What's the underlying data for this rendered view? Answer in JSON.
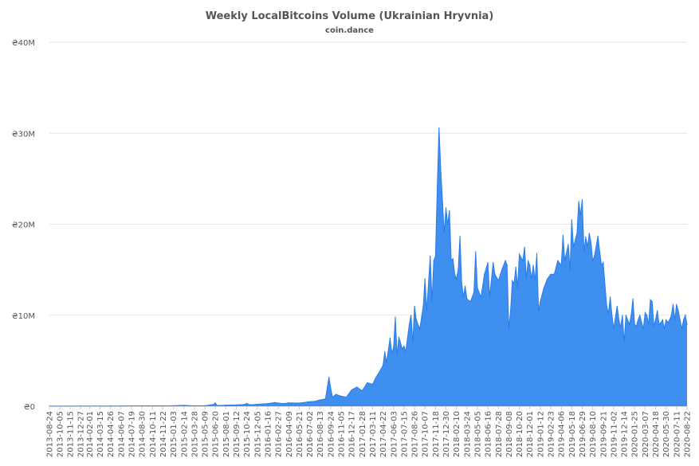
{
  "chart_data": {
    "type": "area",
    "title": "Weekly LocalBitcoins Volume (Ukrainian Hryvnia)",
    "subtitle": "coin.dance",
    "xlabel": "",
    "ylabel": "",
    "ylim": [
      0,
      40000000
    ],
    "y_ticks": [
      {
        "value": 0,
        "label": "₴0"
      },
      {
        "value": 10000000,
        "label": "₴10M"
      },
      {
        "value": 20000000,
        "label": "₴20M"
      },
      {
        "value": 30000000,
        "label": "₴30M"
      },
      {
        "value": 40000000,
        "label": "₴40M"
      }
    ],
    "x_tick_labels": [
      "2013-08-24",
      "2013-10-05",
      "2013-11-15",
      "2013-12-27",
      "2014-02-01",
      "2014-03-15",
      "2014-04-26",
      "2014-06-07",
      "2014-07-19",
      "2014-08-30",
      "2014-10-11",
      "2014-11-22",
      "2015-01-03",
      "2015-02-14",
      "2015-03-28",
      "2015-05-09",
      "2015-06-20",
      "2015-08-01",
      "2015-09-12",
      "2015-10-24",
      "2015-12-05",
      "2016-01-16",
      "2016-02-27",
      "2016-04-09",
      "2016-05-21",
      "2016-07-02",
      "2016-08-13",
      "2016-09-24",
      "2016-11-05",
      "2016-12-17",
      "2017-01-28",
      "2017-03-11",
      "2017-04-22",
      "2017-06-03",
      "2017-07-15",
      "2017-08-26",
      "2017-10-07",
      "2017-11-18",
      "2017-12-30",
      "2018-02-10",
      "2018-03-24",
      "2018-05-05",
      "2018-06-16",
      "2018-07-28",
      "2018-09-08",
      "2018-10-20",
      "2018-12-01",
      "2019-01-12",
      "2019-02-23",
      "2019-04-06",
      "2019-05-18",
      "2019-06-29",
      "2019-08-10",
      "2019-09-21",
      "2019-11-02",
      "2019-12-14",
      "2020-01-25",
      "2020-03-07",
      "2020-04-18",
      "2020-05-30",
      "2020-07-11",
      "2020-08-22"
    ],
    "series": [
      {
        "name": "",
        "color": "#3f8ff0",
        "points": [
          [
            "2013-08-24",
            5000
          ],
          [
            "2013-12-27",
            20000
          ],
          [
            "2014-04-26",
            30000
          ],
          [
            "2014-08-30",
            40000
          ],
          [
            "2014-12-27",
            50000
          ],
          [
            "2015-02-14",
            100000
          ],
          [
            "2015-03-28",
            40000
          ],
          [
            "2015-05-09",
            50000
          ],
          [
            "2015-06-13",
            200000
          ],
          [
            "2015-06-20",
            350000
          ],
          [
            "2015-06-27",
            80000
          ],
          [
            "2015-08-01",
            120000
          ],
          [
            "2015-09-12",
            150000
          ],
          [
            "2015-10-10",
            180000
          ],
          [
            "2015-10-24",
            300000
          ],
          [
            "2015-11-07",
            150000
          ],
          [
            "2015-12-05",
            220000
          ],
          [
            "2016-01-16",
            300000
          ],
          [
            "2016-02-13",
            400000
          ],
          [
            "2016-02-27",
            350000
          ],
          [
            "2016-03-19",
            300000
          ],
          [
            "2016-04-09",
            380000
          ],
          [
            "2016-05-21",
            350000
          ],
          [
            "2016-07-02",
            500000
          ],
          [
            "2016-07-23",
            550000
          ],
          [
            "2016-08-13",
            700000
          ],
          [
            "2016-09-03",
            800000
          ],
          [
            "2016-09-17",
            3200000
          ],
          [
            "2016-09-24",
            2000000
          ],
          [
            "2016-10-01",
            1000000
          ],
          [
            "2016-10-15",
            1300000
          ],
          [
            "2016-11-05",
            1100000
          ],
          [
            "2016-11-26",
            1000000
          ],
          [
            "2016-12-17",
            1800000
          ],
          [
            "2017-01-07",
            2100000
          ],
          [
            "2017-01-28",
            1700000
          ],
          [
            "2017-02-18",
            2600000
          ],
          [
            "2017-03-11",
            2400000
          ],
          [
            "2017-03-25",
            3200000
          ],
          [
            "2017-04-08",
            3800000
          ],
          [
            "2017-04-22",
            4500000
          ],
          [
            "2017-04-29",
            6000000
          ],
          [
            "2017-05-06",
            4800000
          ],
          [
            "2017-05-20",
            7500000
          ],
          [
            "2017-05-27",
            5800000
          ],
          [
            "2017-06-03",
            6500000
          ],
          [
            "2017-06-10",
            9800000
          ],
          [
            "2017-06-17",
            5600000
          ],
          [
            "2017-06-24",
            7600000
          ],
          [
            "2017-07-08",
            6300000
          ],
          [
            "2017-07-15",
            6600000
          ],
          [
            "2017-07-22",
            6000000
          ],
          [
            "2017-08-05",
            9000000
          ],
          [
            "2017-08-12",
            10000000
          ],
          [
            "2017-08-19",
            7000000
          ],
          [
            "2017-08-26",
            11000000
          ],
          [
            "2017-09-02",
            9500000
          ],
          [
            "2017-09-16",
            8500000
          ],
          [
            "2017-09-30",
            11000000
          ],
          [
            "2017-10-07",
            14000000
          ],
          [
            "2017-10-14",
            10500000
          ],
          [
            "2017-10-28",
            16500000
          ],
          [
            "2017-11-04",
            11500000
          ],
          [
            "2017-11-11",
            16000000
          ],
          [
            "2017-11-18",
            16500000
          ],
          [
            "2017-11-25",
            24000000
          ],
          [
            "2017-12-02",
            30600000
          ],
          [
            "2017-12-09",
            26000000
          ],
          [
            "2017-12-16",
            22500000
          ],
          [
            "2017-12-23",
            19000000
          ],
          [
            "2017-12-30",
            21800000
          ],
          [
            "2018-01-06",
            20000000
          ],
          [
            "2018-01-13",
            21500000
          ],
          [
            "2018-01-20",
            16000000
          ],
          [
            "2018-01-27",
            16200000
          ],
          [
            "2018-02-03",
            14500000
          ],
          [
            "2018-02-10",
            14000000
          ],
          [
            "2018-02-17",
            15000000
          ],
          [
            "2018-02-24",
            18700000
          ],
          [
            "2018-03-03",
            13500000
          ],
          [
            "2018-03-10",
            12000000
          ],
          [
            "2018-03-17",
            13200000
          ],
          [
            "2018-03-24",
            11800000
          ],
          [
            "2018-04-07",
            11500000
          ],
          [
            "2018-04-21",
            12500000
          ],
          [
            "2018-04-28",
            17000000
          ],
          [
            "2018-05-05",
            13000000
          ],
          [
            "2018-05-19",
            12000000
          ],
          [
            "2018-06-02",
            14500000
          ],
          [
            "2018-06-16",
            15800000
          ],
          [
            "2018-06-23",
            12000000
          ],
          [
            "2018-07-07",
            15800000
          ],
          [
            "2018-07-14",
            14500000
          ],
          [
            "2018-07-28",
            13800000
          ],
          [
            "2018-08-11",
            15000000
          ],
          [
            "2018-08-25",
            16000000
          ],
          [
            "2018-09-01",
            15500000
          ],
          [
            "2018-09-08",
            8500000
          ],
          [
            "2018-09-15",
            10500000
          ],
          [
            "2018-09-22",
            13800000
          ],
          [
            "2018-09-29",
            13500000
          ],
          [
            "2018-10-06",
            15300000
          ],
          [
            "2018-10-13",
            13000000
          ],
          [
            "2018-10-20",
            16700000
          ],
          [
            "2018-11-03",
            16000000
          ],
          [
            "2018-11-10",
            17500000
          ],
          [
            "2018-11-17",
            14000000
          ],
          [
            "2018-11-24",
            16000000
          ],
          [
            "2018-12-01",
            15500000
          ],
          [
            "2018-12-08",
            14000000
          ],
          [
            "2018-12-15",
            15500000
          ],
          [
            "2018-12-22",
            13800000
          ],
          [
            "2018-12-29",
            16800000
          ],
          [
            "2019-01-05",
            10500000
          ],
          [
            "2019-01-12",
            11500000
          ],
          [
            "2019-01-26",
            13000000
          ],
          [
            "2019-02-09",
            14000000
          ],
          [
            "2019-02-23",
            14500000
          ],
          [
            "2019-03-09",
            14500000
          ],
          [
            "2019-03-23",
            16000000
          ],
          [
            "2019-04-06",
            15500000
          ],
          [
            "2019-04-13",
            18800000
          ],
          [
            "2019-04-20",
            16000000
          ],
          [
            "2019-05-04",
            17800000
          ],
          [
            "2019-05-11",
            15000000
          ],
          [
            "2019-05-18",
            20500000
          ],
          [
            "2019-05-25",
            17500000
          ],
          [
            "2019-06-08",
            19000000
          ],
          [
            "2019-06-15",
            22500000
          ],
          [
            "2019-06-22",
            21000000
          ],
          [
            "2019-06-29",
            22700000
          ],
          [
            "2019-07-06",
            17000000
          ],
          [
            "2019-07-13",
            18600000
          ],
          [
            "2019-07-20",
            17500000
          ],
          [
            "2019-07-27",
            19000000
          ],
          [
            "2019-08-03",
            18000000
          ],
          [
            "2019-08-10",
            16000000
          ],
          [
            "2019-08-17",
            16500000
          ],
          [
            "2019-08-31",
            18700000
          ],
          [
            "2019-09-07",
            17000000
          ],
          [
            "2019-09-14",
            15500000
          ],
          [
            "2019-09-21",
            15800000
          ],
          [
            "2019-10-05",
            11000000
          ],
          [
            "2019-10-12",
            10200000
          ],
          [
            "2019-10-19",
            12000000
          ],
          [
            "2019-10-26",
            10000000
          ],
          [
            "2019-11-02",
            8500000
          ],
          [
            "2019-11-16",
            11000000
          ],
          [
            "2019-11-23",
            9500000
          ],
          [
            "2019-11-30",
            8700000
          ],
          [
            "2019-12-07",
            10000000
          ],
          [
            "2019-12-14",
            7000000
          ],
          [
            "2019-12-21",
            10000000
          ],
          [
            "2019-12-28",
            9500000
          ],
          [
            "2020-01-04",
            9000000
          ],
          [
            "2020-01-11",
            10000000
          ],
          [
            "2020-01-18",
            11800000
          ],
          [
            "2020-01-25",
            9000000
          ],
          [
            "2020-02-01",
            8800000
          ],
          [
            "2020-02-08",
            9500000
          ],
          [
            "2020-02-15",
            10000000
          ],
          [
            "2020-02-22",
            9200000
          ],
          [
            "2020-02-29",
            8500000
          ],
          [
            "2020-03-07",
            10300000
          ],
          [
            "2020-03-14",
            10000000
          ],
          [
            "2020-03-21",
            9000000
          ],
          [
            "2020-03-28",
            11700000
          ],
          [
            "2020-04-04",
            11500000
          ],
          [
            "2020-04-11",
            8800000
          ],
          [
            "2020-04-18",
            9500000
          ],
          [
            "2020-04-25",
            10500000
          ],
          [
            "2020-05-02",
            9000000
          ],
          [
            "2020-05-09",
            9200000
          ],
          [
            "2020-05-16",
            9500000
          ],
          [
            "2020-05-23",
            8500000
          ],
          [
            "2020-05-30",
            9500000
          ],
          [
            "2020-06-06",
            9200000
          ],
          [
            "2020-06-13",
            9500000
          ],
          [
            "2020-06-20",
            10000000
          ],
          [
            "2020-06-27",
            11200000
          ],
          [
            "2020-07-04",
            9500000
          ],
          [
            "2020-07-11",
            11200000
          ],
          [
            "2020-07-18",
            10500000
          ],
          [
            "2020-07-25",
            9500000
          ],
          [
            "2020-08-01",
            8500000
          ],
          [
            "2020-08-08",
            9500000
          ],
          [
            "2020-08-15",
            10000000
          ],
          [
            "2020-08-22",
            9000000
          ]
        ]
      }
    ],
    "grid": true,
    "legend": "none"
  },
  "colors": {
    "area_fill": "#3f8ff0",
    "area_line": "#2a7de6",
    "grid": "#e6e6e6",
    "axis_text": "#555555",
    "title_text": "#555555"
  }
}
